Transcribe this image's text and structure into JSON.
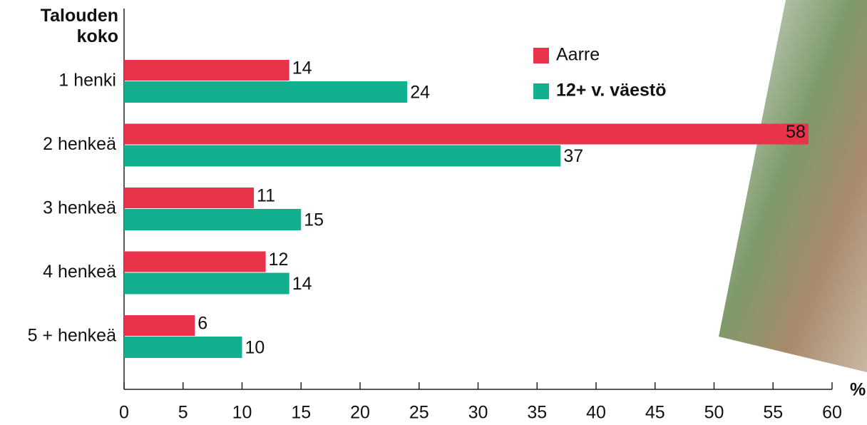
{
  "chart_data": {
    "type": "hbar",
    "y_axis_label": "Talouden koko",
    "x_axis_label": "%",
    "categories": [
      "1 henki",
      "2 henkeä",
      "3 henkeä",
      "4 henkeä",
      "5 + henkeä"
    ],
    "series": [
      {
        "name": "Aarre",
        "color": "#e8334a",
        "values": [
          14,
          58,
          11,
          12,
          6
        ]
      },
      {
        "name": "12+ v. väestö",
        "color": "#13b08f",
        "values": [
          24,
          37,
          15,
          14,
          10
        ]
      }
    ],
    "xlim": [
      0,
      60
    ],
    "xticks": [
      0,
      5,
      10,
      15,
      20,
      25,
      30,
      35,
      40,
      45,
      50,
      55,
      60
    ]
  }
}
